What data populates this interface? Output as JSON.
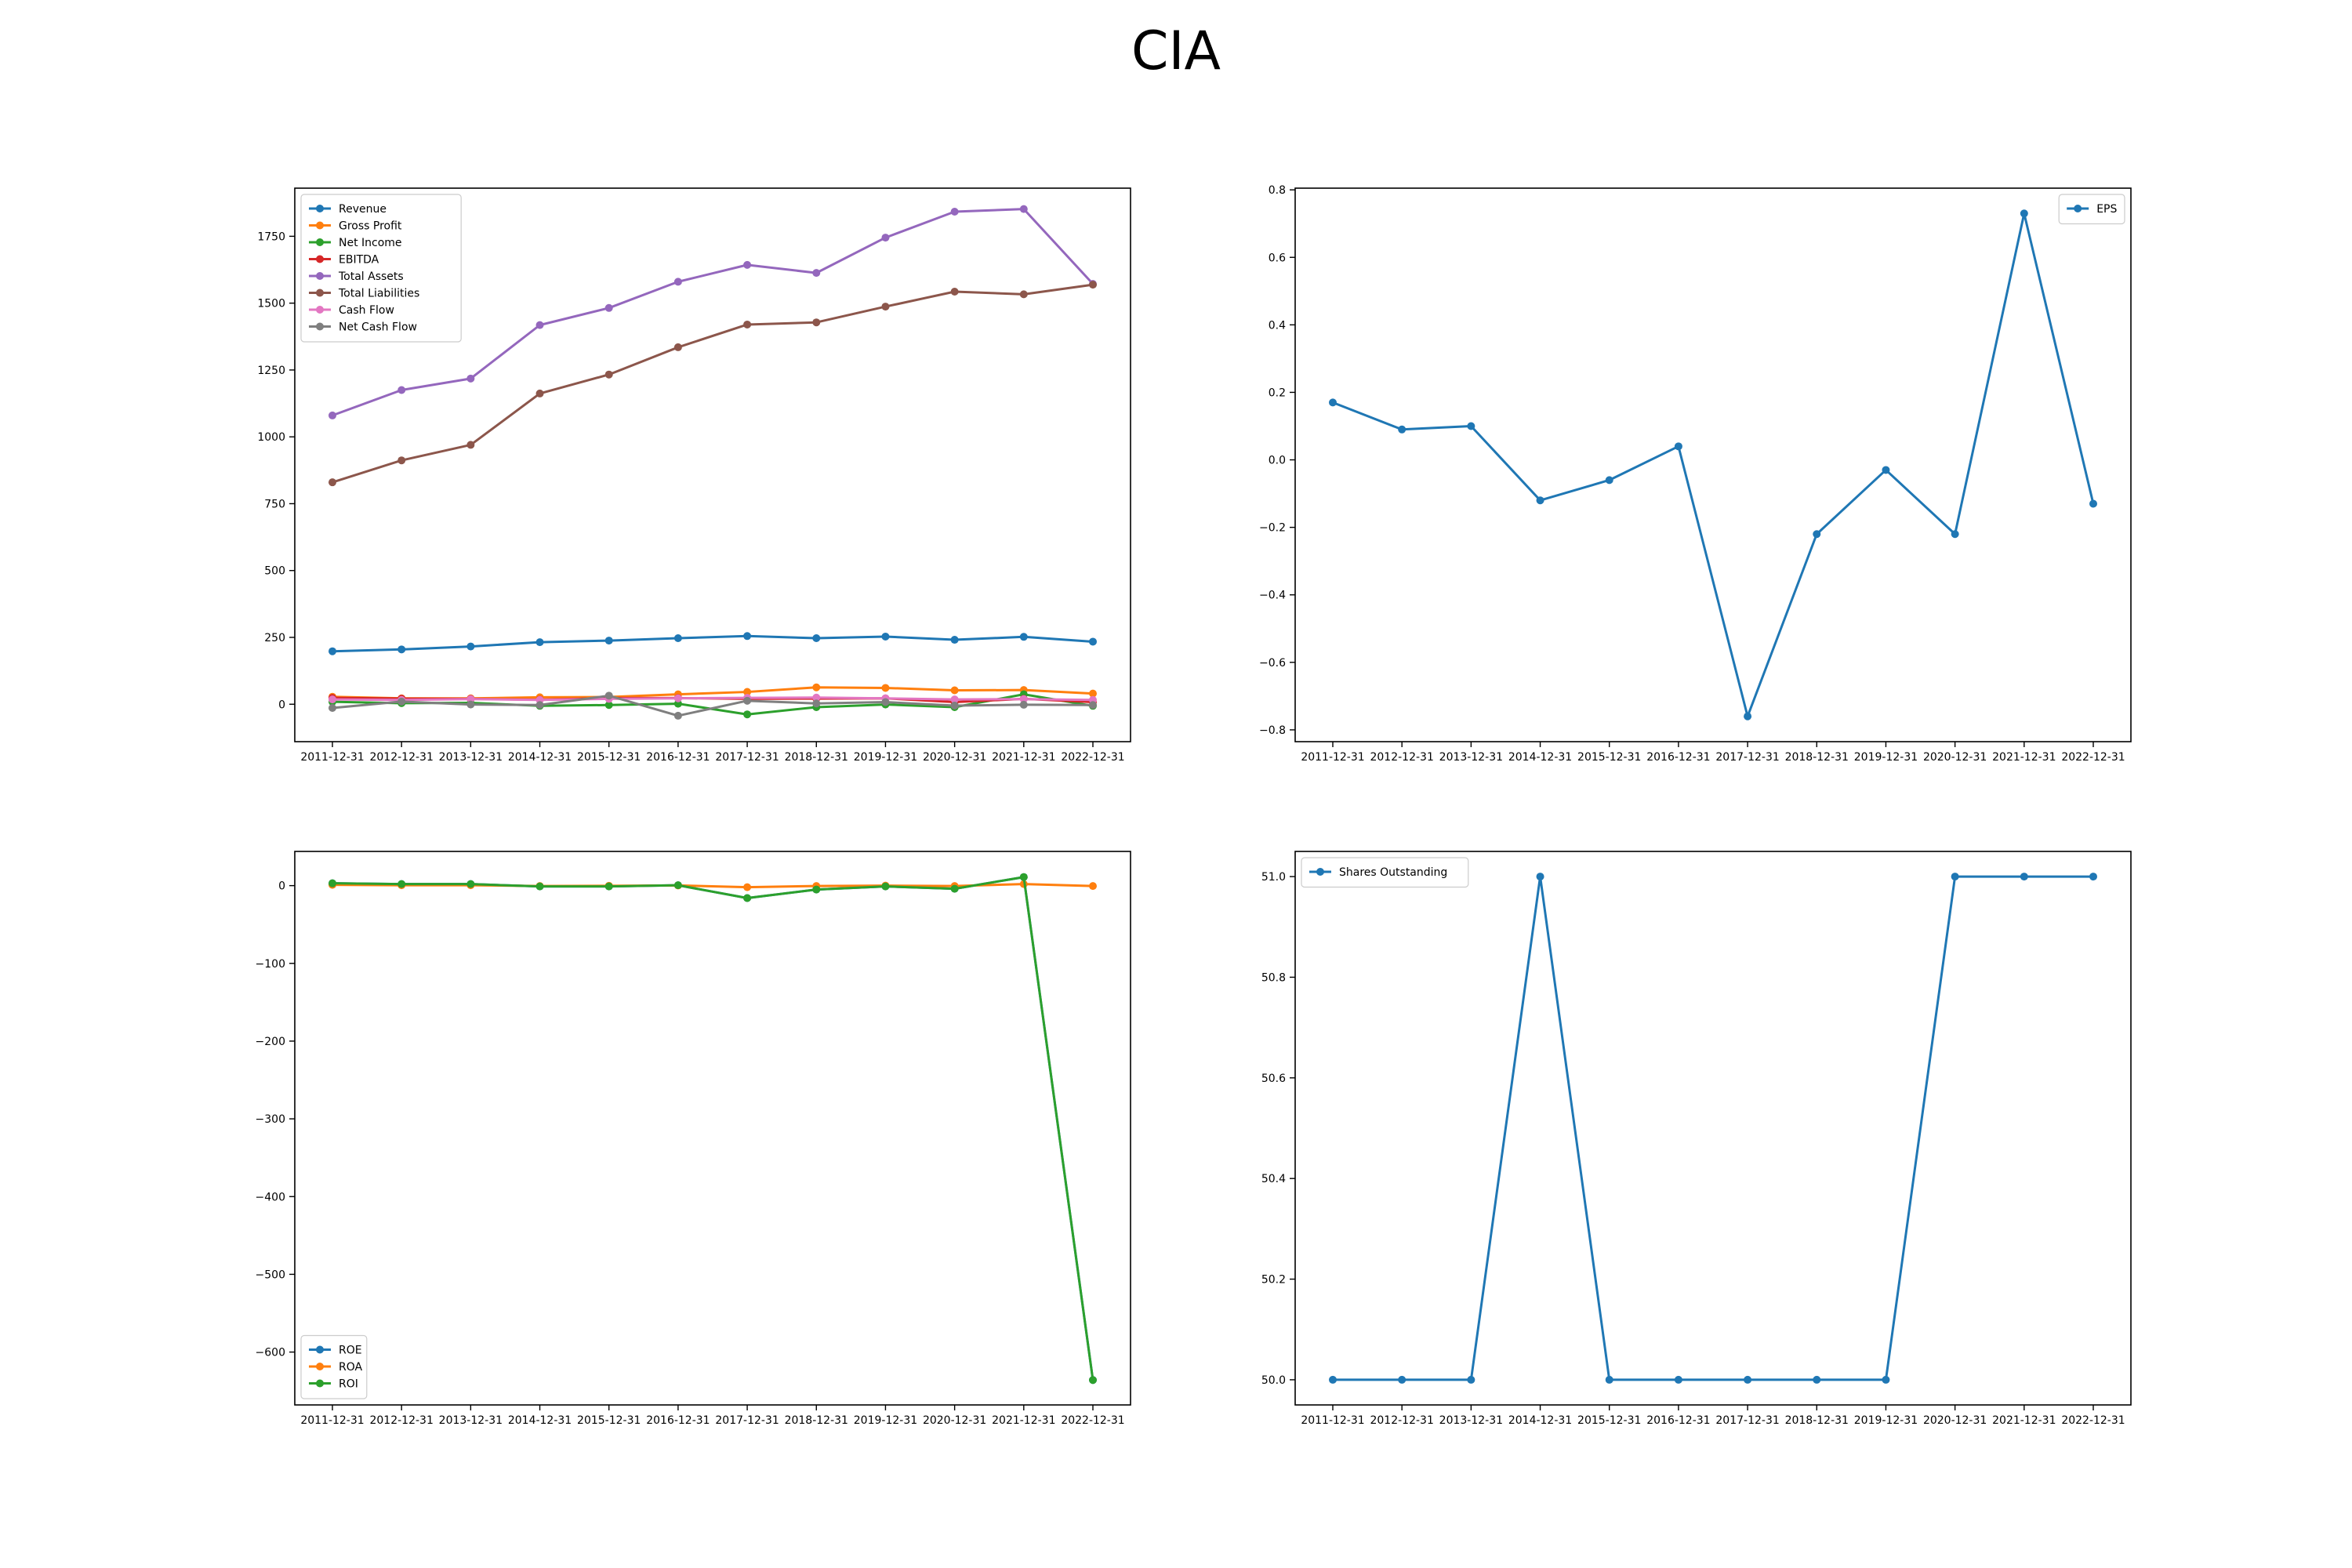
{
  "figure_title": "CIA",
  "chart_data": [
    {
      "type": "line",
      "x": [
        "2011-12-31",
        "2012-12-31",
        "2013-12-31",
        "2014-12-31",
        "2015-12-31",
        "2016-12-31",
        "2017-12-31",
        "2018-12-31",
        "2019-12-31",
        "2020-12-31",
        "2021-12-31",
        "2022-12-31"
      ],
      "ylim": [
        -140,
        1930
      ],
      "yticks": [
        "0",
        "250",
        "500",
        "750",
        "1000",
        "1250",
        "1500",
        "1750"
      ],
      "ytick_values": [
        0,
        250,
        500,
        750,
        1000,
        1250,
        1500,
        1750
      ],
      "grid": false,
      "legend": "top-left",
      "series": [
        {
          "name": "Revenue",
          "color": "#1f77b4",
          "values": [
            198,
            205,
            216,
            232,
            238,
            247,
            255,
            247,
            253,
            241,
            252,
            234
          ]
        },
        {
          "name": "Gross Profit",
          "color": "#ff7f0e",
          "values": [
            28,
            22,
            22,
            26,
            27,
            37,
            46,
            63,
            61,
            52,
            53,
            40
          ]
        },
        {
          "name": "Net Income",
          "color": "#2ca02c",
          "values": [
            9,
            4,
            5,
            -6,
            -3,
            2,
            -38,
            -11,
            -1,
            -11,
            37,
            -6
          ]
        },
        {
          "name": "EBITDA",
          "color": "#d62728",
          "values": [
            24,
            21,
            20,
            17,
            23,
            23,
            20,
            21,
            22,
            8,
            20,
            8
          ]
        },
        {
          "name": "Total Assets",
          "color": "#9467bd",
          "values": [
            1080,
            1175,
            1218,
            1418,
            1482,
            1580,
            1643,
            1613,
            1745,
            1842,
            1852,
            1572
          ]
        },
        {
          "name": "Total Liabilities",
          "color": "#8c564b",
          "values": [
            830,
            912,
            970,
            1162,
            1233,
            1335,
            1420,
            1428,
            1487,
            1543,
            1533,
            1569
          ]
        },
        {
          "name": "Cash Flow",
          "color": "#e377c2",
          "values": [
            18,
            16,
            19,
            16,
            20,
            22,
            24,
            25,
            22,
            18,
            19,
            16
          ]
        },
        {
          "name": "Net Cash Flow",
          "color": "#7f7f7f",
          "values": [
            -14,
            10,
            -1,
            -3,
            32,
            -43,
            13,
            3,
            8,
            -5,
            -2,
            -3
          ]
        }
      ]
    },
    {
      "type": "line",
      "x": [
        "2011-12-31",
        "2012-12-31",
        "2013-12-31",
        "2014-12-31",
        "2015-12-31",
        "2016-12-31",
        "2017-12-31",
        "2018-12-31",
        "2019-12-31",
        "2020-12-31",
        "2021-12-31",
        "2022-12-31"
      ],
      "ylim": [
        -0.835,
        0.805
      ],
      "yticks": [
        "−0.8",
        "−0.6",
        "−0.4",
        "−0.2",
        "0.0",
        "0.2",
        "0.4",
        "0.6",
        "0.8"
      ],
      "ytick_values": [
        -0.8,
        -0.6,
        -0.4,
        -0.2,
        0,
        0.2,
        0.4,
        0.6,
        0.8
      ],
      "grid": false,
      "legend": "top-right",
      "series": [
        {
          "name": "EPS",
          "color": "#1f77b4",
          "values": [
            0.17,
            0.09,
            0.1,
            -0.12,
            -0.06,
            0.04,
            -0.76,
            -0.22,
            -0.03,
            -0.22,
            0.73,
            -0.13
          ]
        }
      ]
    },
    {
      "type": "line",
      "x": [
        "2011-12-31",
        "2012-12-31",
        "2013-12-31",
        "2014-12-31",
        "2015-12-31",
        "2016-12-31",
        "2017-12-31",
        "2018-12-31",
        "2019-12-31",
        "2020-12-31",
        "2021-12-31",
        "2022-12-31"
      ],
      "ylim": [
        -668,
        44
      ],
      "yticks": [
        "−600",
        "−500",
        "−400",
        "−300",
        "−200",
        "−100",
        "0"
      ],
      "ytick_values": [
        -600,
        -500,
        -400,
        -300,
        -200,
        -100,
        0
      ],
      "grid": false,
      "legend": "bottom-left",
      "series": [
        {
          "name": "ROE",
          "color": "#1f77b4",
          "values": [
            3,
            2,
            2,
            -1,
            -1,
            0.5,
            -16,
            -5,
            -1,
            -4,
            11,
            -636
          ]
        },
        {
          "name": "ROA",
          "color": "#ff7f0e",
          "values": [
            1,
            0.5,
            0.5,
            -0.5,
            -0.2,
            0.2,
            -2,
            -0.5,
            0,
            -0.5,
            2,
            -0.5
          ]
        },
        {
          "name": "ROI",
          "color": "#2ca02c",
          "values": [
            3,
            2,
            2,
            -1,
            -1,
            0.5,
            -16,
            -5,
            -1,
            -4,
            11,
            -636
          ]
        }
      ]
    },
    {
      "type": "line",
      "x": [
        "2011-12-31",
        "2012-12-31",
        "2013-12-31",
        "2014-12-31",
        "2015-12-31",
        "2016-12-31",
        "2017-12-31",
        "2018-12-31",
        "2019-12-31",
        "2020-12-31",
        "2021-12-31",
        "2022-12-31"
      ],
      "ylim": [
        49.95,
        51.05
      ],
      "yticks": [
        "50.0",
        "50.2",
        "50.4",
        "50.6",
        "50.8",
        "51.0"
      ],
      "ytick_values": [
        50.0,
        50.2,
        50.4,
        50.6,
        50.8,
        51.0
      ],
      "grid": false,
      "legend": "top-left",
      "series": [
        {
          "name": "Shares Outstanding",
          "color": "#1f77b4",
          "values": [
            50,
            50,
            50,
            51,
            50,
            50,
            50,
            50,
            50,
            51,
            51,
            51
          ]
        }
      ]
    }
  ]
}
